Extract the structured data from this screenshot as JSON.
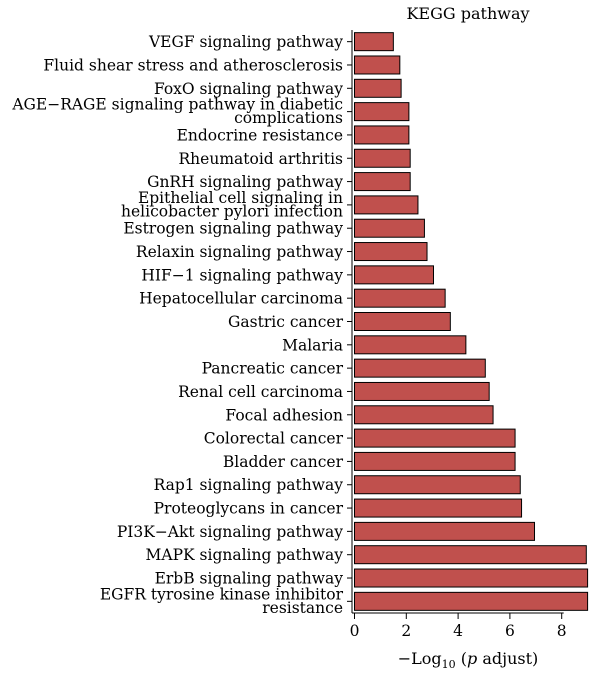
{
  "chart_data": {
    "type": "bar",
    "orientation": "horizontal",
    "title": "KEGG pathway",
    "xlabel": {
      "prefix": "−Log",
      "subscript": "10",
      "rest": " (",
      "italic": "p",
      "suffix": " adjust)"
    },
    "ylabel": "",
    "xlim": [
      0,
      9.3
    ],
    "xticks": [
      "0",
      "2",
      "4",
      "6",
      "8"
    ],
    "grid": false,
    "legend": "none",
    "bar_color": "#c0504d",
    "bar_stroke": "#000000",
    "categories": [
      [
        "VEGF signaling pathway"
      ],
      [
        "Fluid shear stress and atherosclerosis"
      ],
      [
        "FoxO signaling pathway"
      ],
      [
        "AGE−RAGE signaling pathway in diabetic",
        "complications"
      ],
      [
        "Endocrine resistance"
      ],
      [
        "Rheumatoid arthritis"
      ],
      [
        "GnRH signaling pathway"
      ],
      [
        "Epithelial cell signaling in",
        "helicobacter pylori infection"
      ],
      [
        "Estrogen signaling pathway"
      ],
      [
        "Relaxin signaling pathway"
      ],
      [
        "HIF−1 signaling pathway"
      ],
      [
        "Hepatocellular carcinoma"
      ],
      [
        "Gastric cancer"
      ],
      [
        "Malaria"
      ],
      [
        "Pancreatic cancer"
      ],
      [
        "Renal cell carcinoma"
      ],
      [
        "Focal adhesion"
      ],
      [
        "Colorectal cancer"
      ],
      [
        "Bladder cancer"
      ],
      [
        "Rap1 signaling pathway"
      ],
      [
        "Proteoglycans in cancer"
      ],
      [
        "PI3K−Akt signaling pathway"
      ],
      [
        "MAPK signaling pathway"
      ],
      [
        "ErbB signaling pathway"
      ],
      [
        "EGFR tyrosine kinase inhibitor",
        "resistance"
      ]
    ],
    "values": [
      1.5,
      1.75,
      1.8,
      2.1,
      2.1,
      2.15,
      2.15,
      2.45,
      2.7,
      2.8,
      3.05,
      3.5,
      3.7,
      4.3,
      5.05,
      5.2,
      5.35,
      6.2,
      6.2,
      6.4,
      6.45,
      6.95,
      8.95,
      9.0,
      9.0
    ]
  }
}
